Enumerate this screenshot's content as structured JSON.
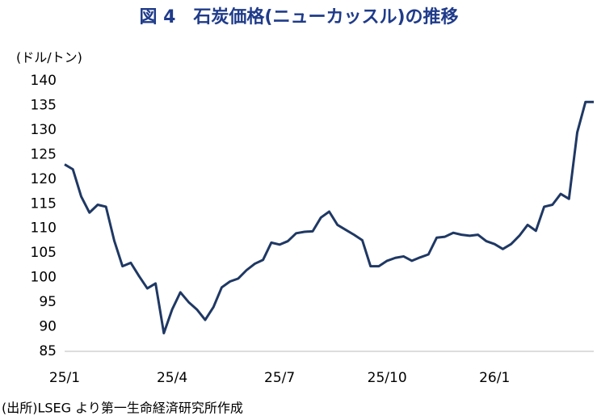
{
  "chart_data": {
    "type": "line",
    "title": "図 4　石炭価格(ニューカッスル)の推移",
    "y_label": "(ドル/トン)",
    "source": "(出所)LSEG より第一生命経済研究所作成",
    "categories": [
      "25/1",
      null,
      null,
      null,
      null,
      null,
      null,
      null,
      null,
      null,
      null,
      null,
      null,
      "25/4",
      null,
      null,
      null,
      null,
      null,
      null,
      null,
      null,
      null,
      null,
      null,
      null,
      "25/7",
      null,
      null,
      null,
      null,
      null,
      null,
      null,
      null,
      null,
      null,
      null,
      null,
      "25/10",
      null,
      null,
      null,
      null,
      null,
      null,
      null,
      null,
      null,
      null,
      null,
      null,
      "26/1",
      null,
      null,
      null,
      null,
      null,
      null,
      null,
      null,
      null,
      null,
      null,
      null
    ],
    "series": [
      {
        "name": "石炭価格",
        "color": "#1f3864",
        "values": [
          123,
          122,
          116.5,
          113.2,
          114.8,
          114.4,
          107.5,
          102.3,
          103,
          100.3,
          97.8,
          98.8,
          88.7,
          93.5,
          97,
          95,
          93.5,
          91.4,
          94,
          98,
          99.2,
          99.8,
          101.5,
          102.8,
          103.6,
          107.1,
          106.7,
          107.4,
          109,
          109.3,
          109.4,
          112.2,
          113.4,
          110.7,
          109.7,
          108.7,
          107.6,
          102.3,
          102.3,
          103.4,
          104,
          104.3,
          103.4,
          104.1,
          104.7,
          108.1,
          108.3,
          109.1,
          108.7,
          108.5,
          108.7,
          107.4,
          106.8,
          105.8,
          106.8,
          108.5,
          110.7,
          109.5,
          114.4,
          114.8,
          117,
          116,
          129.5,
          135.7,
          135.7
        ]
      }
    ],
    "ylim": [
      85,
      140
    ],
    "yticks": [
      85,
      90,
      95,
      100,
      105,
      110,
      115,
      120,
      125,
      130,
      135,
      140
    ],
    "grid": false
  }
}
